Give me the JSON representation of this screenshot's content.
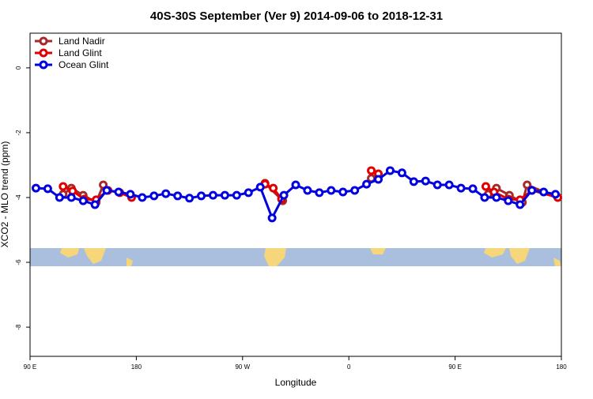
{
  "chart_data": {
    "type": "line",
    "title": "40S-30S September (Ver 9)   2014-09-06 to 2018-12-31",
    "xlabel": "Longitude",
    "ylabel": "XCO2 - MLO trend (ppm)",
    "xlim": [
      90,
      540
    ],
    "ylim": [
      -8.9,
      1.07
    ],
    "xticks": [
      {
        "value": 90,
        "label": "90 E"
      },
      {
        "value": 180,
        "label": "180"
      },
      {
        "value": 270,
        "label": "90 W"
      },
      {
        "value": 360,
        "label": "0"
      },
      {
        "value": 450,
        "label": "90 E"
      },
      {
        "value": 540,
        "label": "180"
      }
    ],
    "yticks": [
      0,
      -2,
      -4,
      -6,
      -8
    ],
    "legend": "top-left",
    "series": [
      {
        "name": "Land Nadir",
        "color": "#a52a2a",
        "x": [
          118,
          125,
          135,
          146,
          152,
          null,
          289,
          304,
          null,
          379,
          null,
          478,
          485,
          496,
          507,
          511,
          537
        ],
        "values": [
          -3.9,
          -3.71,
          -3.93,
          -4.15,
          -3.61,
          null,
          -3.56,
          -4.1,
          null,
          -3.41,
          null,
          -3.9,
          -3.71,
          -3.93,
          -4.15,
          -3.61,
          -4.0
        ]
      },
      {
        "name": "Land Glint",
        "color": "#e00000",
        "x": [
          118,
          126,
          136,
          146,
          156,
          166,
          176,
          null,
          289,
          296,
          303,
          null,
          379,
          385,
          null,
          476,
          483,
          495,
          505,
          515,
          537
        ],
        "values": [
          -3.66,
          -3.8,
          -4.05,
          -4.07,
          -3.78,
          -3.85,
          -4.0,
          null,
          -3.59,
          -3.71,
          -4.05,
          null,
          -3.17,
          -3.27,
          null,
          -3.66,
          -3.83,
          -4.05,
          -4.07,
          -3.78,
          -4.0
        ]
      },
      {
        "name": "Ocean Glint",
        "color": "#0000e0",
        "x": [
          95,
          105,
          115,
          125,
          135,
          145,
          155,
          165,
          175,
          185,
          195,
          205,
          215,
          225,
          235,
          245,
          255,
          265,
          275,
          285,
          295,
          305,
          315,
          325,
          335,
          345,
          355,
          365,
          375,
          385,
          395,
          405,
          415,
          425,
          435,
          445,
          455,
          465,
          475,
          485,
          495,
          505,
          515,
          525,
          535
        ],
        "values": [
          -3.71,
          -3.73,
          -4.0,
          -4.0,
          -4.1,
          -4.22,
          -3.78,
          -3.83,
          -3.9,
          -4.0,
          -3.95,
          -3.88,
          -3.95,
          -4.02,
          -3.95,
          -3.93,
          -3.93,
          -3.93,
          -3.85,
          -3.68,
          -4.63,
          -3.93,
          -3.61,
          -3.78,
          -3.85,
          -3.78,
          -3.83,
          -3.78,
          -3.59,
          -3.44,
          -3.17,
          -3.24,
          -3.51,
          -3.49,
          -3.61,
          -3.61,
          -3.71,
          -3.73,
          -4.0,
          -4.0,
          -4.1,
          -4.22,
          -3.78,
          -3.83,
          -3.9
        ]
      }
    ]
  }
}
